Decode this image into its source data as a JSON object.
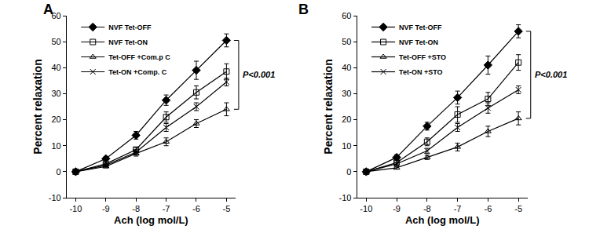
{
  "chart_data": [
    {
      "type": "line",
      "title": "A",
      "x_label": "Ach (log mol/L)",
      "y_label": "Percent relaxation",
      "x": [
        -10,
        -9,
        -8,
        -7,
        -6,
        -5
      ],
      "xlim": [
        -10.3,
        -4.7
      ],
      "xticks": [
        -10,
        -9,
        -8,
        -7,
        -6,
        -5
      ],
      "ylim": [
        -10,
        60
      ],
      "yticks": [
        -10,
        0,
        10,
        20,
        30,
        40,
        50,
        60
      ],
      "grid": false,
      "legend": "upper left",
      "annotations": [
        {
          "text": "P<0.001"
        }
      ],
      "series": [
        {
          "name": "NVF Tet-OFF",
          "color": "#000000",
          "marker": "diamond",
          "line_style": "solid",
          "values": [
            0,
            5,
            14,
            27.5,
            39,
            50.5
          ],
          "errors": [
            0.5,
            0.8,
            1.5,
            2,
            3.5,
            2.5
          ]
        },
        {
          "name": "NVF Tet-ON",
          "color": "#000000",
          "marker": "square-open",
          "line_style": "solid",
          "values": [
            0,
            3,
            8.5,
            21,
            30.5,
            38.5
          ],
          "errors": [
            0.3,
            0.5,
            0.8,
            2,
            2.5,
            3
          ]
        },
        {
          "name": "Tet-OFF +Com.p C",
          "color": "#000000",
          "marker": "triangle-up-open",
          "line_style": "solid",
          "values": [
            0,
            2,
            7,
            11.5,
            18.5,
            24
          ],
          "errors": [
            0.3,
            0.5,
            1,
            1.5,
            1.5,
            2.5
          ]
        },
        {
          "name": "Tet-ON +Comp. C",
          "color": "#000000",
          "marker": "x-thin-open",
          "line_style": "solid",
          "values": [
            0,
            2.5,
            7.5,
            17,
            25,
            34.5
          ],
          "errors": [
            0.3,
            0.5,
            1,
            1.5,
            1.5,
            1.5
          ]
        }
      ]
    },
    {
      "type": "line",
      "title": "B",
      "x_label": "Ach (log mol/L)",
      "y_label": "Percent relaxation",
      "x": [
        -10,
        -9,
        -8,
        -7,
        -6,
        -5
      ],
      "xlim": [
        -10.3,
        -4.7
      ],
      "xticks": [
        -10,
        -9,
        -8,
        -7,
        -6,
        -5
      ],
      "ylim": [
        -10,
        60
      ],
      "yticks": [
        -10,
        0,
        10,
        20,
        30,
        40,
        50,
        60
      ],
      "grid": false,
      "legend": "upper left",
      "annotations": [
        {
          "text": "P<0.001"
        }
      ],
      "series": [
        {
          "name": "NVF Tet-OFF",
          "color": "#000000",
          "marker": "diamond",
          "line_style": "solid",
          "values": [
            0,
            5.5,
            17.5,
            28.5,
            41,
            54
          ],
          "errors": [
            0.5,
            1,
            1.5,
            2.5,
            3.5,
            2.5
          ]
        },
        {
          "name": "NVF Tet-ON",
          "color": "#000000",
          "marker": "square-open",
          "line_style": "solid",
          "values": [
            0,
            3.5,
            11.5,
            22,
            28,
            42
          ],
          "errors": [
            0.5,
            0.8,
            1.5,
            3,
            2.5,
            3
          ]
        },
        {
          "name": "Tet-OFF +STO",
          "color": "#000000",
          "marker": "triangle-up-open",
          "line_style": "solid",
          "values": [
            0,
            1.5,
            5.5,
            9.5,
            15.5,
            20.5
          ],
          "errors": [
            0.3,
            0.5,
            0.8,
            1.5,
            2,
            2.5
          ]
        },
        {
          "name": "Tet-ON +STO",
          "color": "#000000",
          "marker": "x-thin-open",
          "line_style": "solid",
          "values": [
            0,
            3,
            8,
            17,
            24.5,
            31.5
          ],
          "errors": [
            0.3,
            0.5,
            1,
            1.5,
            2,
            1.5
          ]
        }
      ]
    }
  ]
}
